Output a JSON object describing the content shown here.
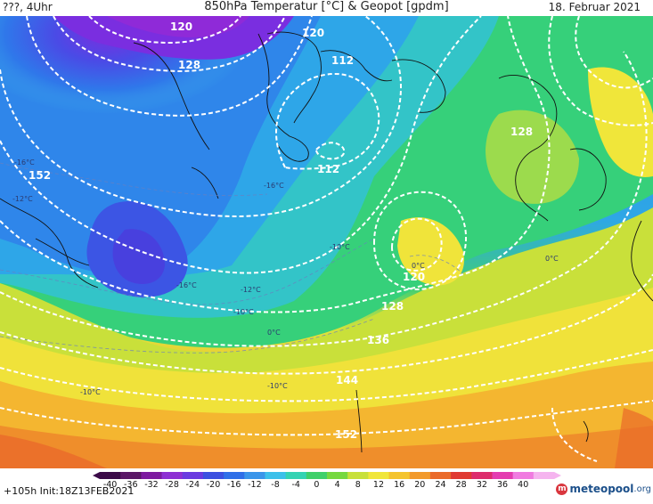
{
  "header": {
    "left": "???, 4Uhr",
    "title": "850hPa Temperatur [°C] & Geopot [gpdm]",
    "date": "18. Februar 2021"
  },
  "map": {
    "geopotential_labels": [
      "120",
      "128",
      "120",
      "112",
      "112",
      "128",
      "152",
      "120",
      "128",
      "136",
      "144",
      "152"
    ],
    "temperature_labels": [
      "-16°C",
      "-16°C",
      "-12°C",
      "-10°C",
      "-10°C",
      "0°C",
      "0°C",
      "0°C",
      "-10°C",
      "-12°C",
      "-10°C",
      "-16°C"
    ]
  },
  "legend": {
    "ticks": [
      "-40",
      "-36",
      "-32",
      "-28",
      "-24",
      "-20",
      "-16",
      "-12",
      "-8",
      "-4",
      "0",
      "4",
      "8",
      "12",
      "16",
      "20",
      "24",
      "28",
      "32",
      "36",
      "40"
    ],
    "colors": [
      "#3b0a48",
      "#5a1766",
      "#7d1aa0",
      "#8e2fd3",
      "#6a3ae0",
      "#3c50e0",
      "#2f6fe8",
      "#3a95ea",
      "#3cc0ea",
      "#34d3b3",
      "#3fd06a",
      "#76d83f",
      "#c8e03a",
      "#f0e63a",
      "#f4c42e",
      "#f29a2c",
      "#ea6a2a",
      "#e03a32",
      "#dd2c6c",
      "#e43cb0",
      "#f07be0",
      "#f5b4ef"
    ],
    "footer_left": "+105h Init:18Z13FEB2021",
    "brand": "meteopool",
    "brand_tld": ".org",
    "brand_badge": "m"
  }
}
